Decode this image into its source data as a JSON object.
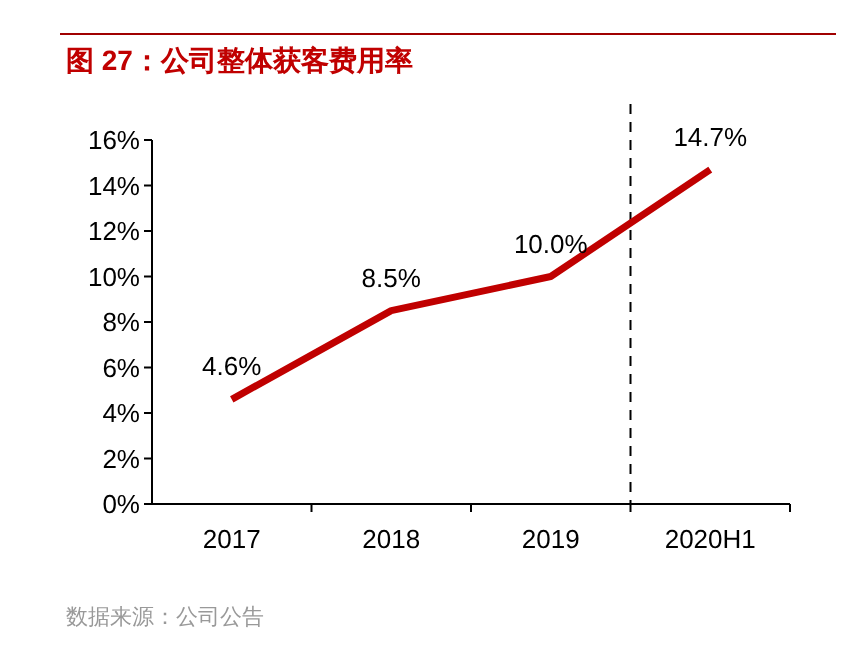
{
  "chart_data": {
    "type": "line",
    "title": "图 27：公司整体获客费用率",
    "categories": [
      "2017",
      "2018",
      "2019",
      "2020H1"
    ],
    "series": [
      {
        "color": "#c00000",
        "values": [
          4.6,
          8.5,
          10.0,
          14.7
        ]
      }
    ],
    "value_labels": [
      "4.6%",
      "8.5%",
      "10.0%",
      "14.7%"
    ],
    "ylim": [
      0,
      16
    ],
    "yticks": [
      {
        "value": 0,
        "label": "0%"
      },
      {
        "value": 2,
        "label": "2%"
      },
      {
        "value": 4,
        "label": "4%"
      },
      {
        "value": 6,
        "label": "6%"
      },
      {
        "value": 8,
        "label": "8%"
      },
      {
        "value": 10,
        "label": "10%"
      },
      {
        "value": 12,
        "label": "12%"
      },
      {
        "value": 14,
        "label": "14%"
      },
      {
        "value": 16,
        "label": "16%"
      }
    ],
    "grid": false,
    "marker": "none",
    "line_style": "solid",
    "annotations": [
      "数据来源：公司公告"
    ]
  }
}
